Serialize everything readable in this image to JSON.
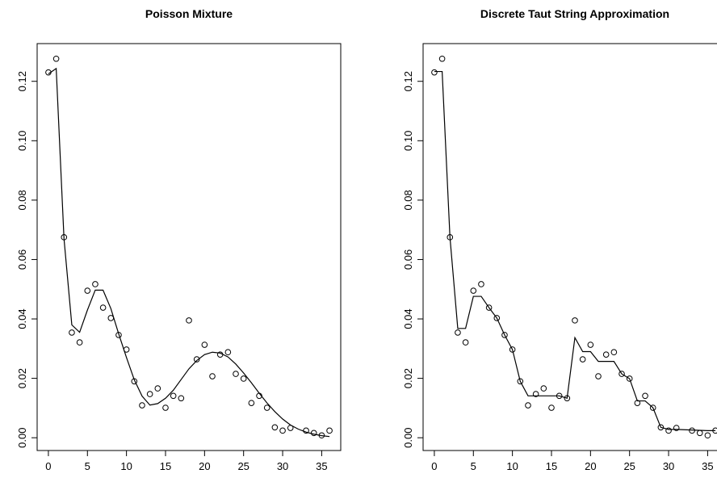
{
  "chart_data": [
    {
      "type": "scatter-line",
      "title": "Poisson Mixture",
      "x": [
        0,
        1,
        2,
        3,
        4,
        5,
        6,
        7,
        8,
        9,
        10,
        11,
        12,
        13,
        14,
        15,
        16,
        17,
        18,
        19,
        20,
        21,
        22,
        23,
        24,
        25,
        26,
        27,
        28,
        29,
        30,
        31,
        32,
        33,
        34,
        35,
        36
      ],
      "values": [
        0.123,
        0.1276,
        0.0675,
        0.0354,
        0.0321,
        0.0495,
        0.0517,
        0.0438,
        0.0403,
        0.0346,
        0.0297,
        0.019,
        0.0109,
        0.0147,
        0.0166,
        0.0101,
        0.0141,
        0.0133,
        0.0395,
        0.0264,
        0.0313,
        0.0207,
        0.028,
        0.0288,
        0.0215,
        0.0199,
        0.0117,
        0.0141,
        0.0101,
        0.0035,
        0.0024,
        0.0033,
        null,
        0.0024,
        0.0016,
        0.0008,
        0.0024
      ],
      "line": [
        0.1225,
        0.1243,
        0.067,
        0.038,
        0.0355,
        0.043,
        0.0497,
        0.0497,
        0.0435,
        0.035,
        0.027,
        0.0195,
        0.014,
        0.011,
        0.0115,
        0.0133,
        0.016,
        0.0196,
        0.0232,
        0.026,
        0.028,
        0.0288,
        0.0285,
        0.0272,
        0.0248,
        0.0218,
        0.0185,
        0.015,
        0.0117,
        0.0088,
        0.0063,
        0.0043,
        0.0029,
        0.0019,
        0.0012,
        0.0007,
        0.0004
      ],
      "xlim": [
        -1.44,
        37.44
      ],
      "xticks": [
        0,
        5,
        10,
        15,
        20,
        25,
        30,
        35
      ],
      "ylim": [
        -0.0043,
        0.1327
      ],
      "yticks": [
        {
          "value": 0,
          "label": "0.00"
        },
        {
          "value": 0.02,
          "label": "0.02"
        },
        {
          "value": 0.04,
          "label": "0.04"
        },
        {
          "value": 0.06,
          "label": "0.06"
        },
        {
          "value": 0.08,
          "label": "0.08"
        },
        {
          "value": 0.1,
          "label": "0.10"
        },
        {
          "value": 0.12,
          "label": "0.12"
        }
      ],
      "color": "#000000"
    },
    {
      "type": "scatter-line",
      "title": "Discrete Taut String Approximation",
      "x": [
        0,
        1,
        2,
        3,
        4,
        5,
        6,
        7,
        8,
        9,
        10,
        11,
        12,
        13,
        14,
        15,
        16,
        17,
        18,
        19,
        20,
        21,
        22,
        23,
        24,
        25,
        26,
        27,
        28,
        29,
        30,
        31,
        32,
        33,
        34,
        35,
        36
      ],
      "values": [
        0.123,
        0.1276,
        0.0675,
        0.0354,
        0.0321,
        0.0495,
        0.0517,
        0.0438,
        0.0403,
        0.0346,
        0.0297,
        0.019,
        0.0109,
        0.0147,
        0.0166,
        0.0101,
        0.0141,
        0.0133,
        0.0395,
        0.0264,
        0.0313,
        0.0207,
        0.028,
        0.0288,
        0.0215,
        0.0199,
        0.0117,
        0.0141,
        0.0101,
        0.0035,
        0.0024,
        0.0033,
        null,
        0.0024,
        0.0016,
        0.0008,
        0.0024
      ],
      "line": [
        0.1233,
        0.1233,
        0.0675,
        0.0368,
        0.0368,
        0.0476,
        0.0476,
        0.0438,
        0.0403,
        0.0346,
        0.0297,
        0.019,
        0.0141,
        0.0141,
        0.0141,
        0.0141,
        0.0141,
        0.0133,
        0.0337,
        0.029,
        0.029,
        0.0257,
        0.0257,
        0.0257,
        0.0215,
        0.0199,
        0.0124,
        0.0124,
        0.0101,
        0.0035,
        0.0028,
        0.0028,
        0.0027,
        0.0026,
        0.0025,
        0.0024,
        0.0024
      ],
      "xlim": [
        -1.44,
        37.44
      ],
      "xticks": [
        0,
        5,
        10,
        15,
        20,
        25,
        30,
        35
      ],
      "ylim": [
        -0.0043,
        0.1327
      ],
      "yticks": [
        {
          "value": 0,
          "label": "0.00"
        },
        {
          "value": 0.02,
          "label": "0.02"
        },
        {
          "value": 0.04,
          "label": "0.04"
        },
        {
          "value": 0.06,
          "label": "0.06"
        },
        {
          "value": 0.08,
          "label": "0.08"
        },
        {
          "value": 0.1,
          "label": "0.10"
        },
        {
          "value": 0.12,
          "label": "0.12"
        }
      ],
      "color": "#000000"
    }
  ]
}
